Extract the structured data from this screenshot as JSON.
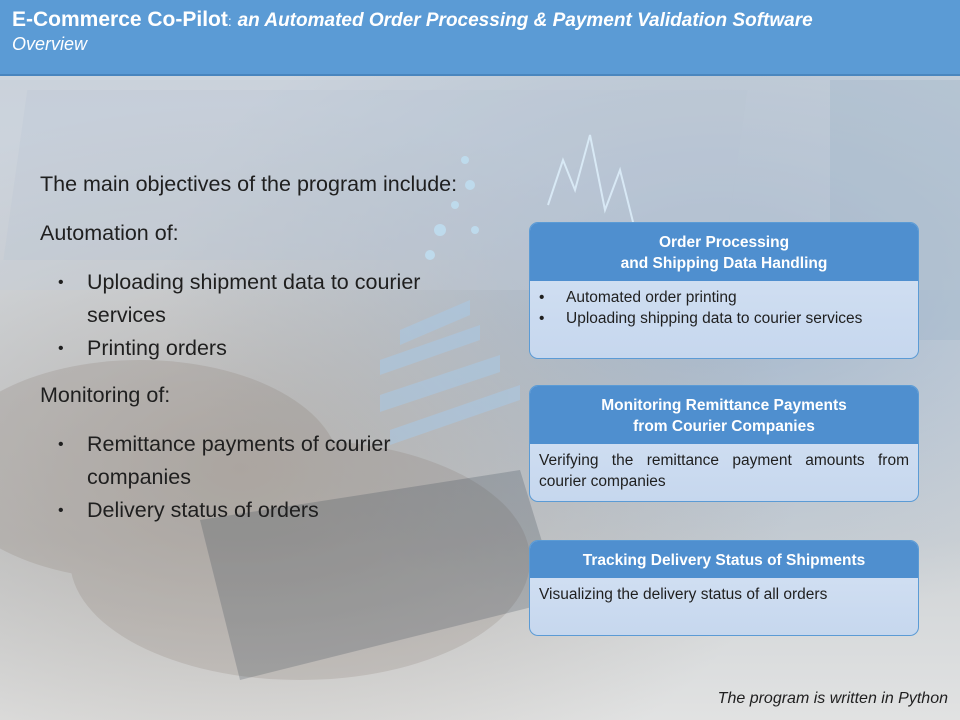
{
  "header": {
    "title": "E-Commerce Co-Pilot",
    "separator": ":",
    "subtitle": "an Automated Order Processing & Payment Validation Software",
    "section": "Overview"
  },
  "left": {
    "intro": "The main objectives of the program include:",
    "automation_heading": "Automation of:",
    "automation_items": [
      "Uploading shipment data to courier services",
      "Printing orders"
    ],
    "monitoring_heading": "Monitoring of:",
    "monitoring_items": [
      "Remittance payments of courier companies",
      "Delivery status of orders"
    ],
    "bullet": "•"
  },
  "boxes": [
    {
      "heading_line1": "Order Processing",
      "heading_line2": "and Shipping Data Handling",
      "items": [
        "Automated order printing",
        "Uploading shipping data to courier services"
      ],
      "bullet": "•"
    },
    {
      "heading_line1": "Monitoring Remittance Payments",
      "heading_line2": "from Courier Companies",
      "text": "Verifying the remittance payment amounts from courier companies"
    },
    {
      "heading_line1": "Tracking Delivery Status of Shipments",
      "text": "Visualizing the delivery status of all orders"
    }
  ],
  "footer": {
    "note": "The program is written in Python"
  },
  "colors": {
    "header": "#5b9bd5",
    "box_header": "#4f8fcf",
    "box_body": "#d6e3f4"
  }
}
